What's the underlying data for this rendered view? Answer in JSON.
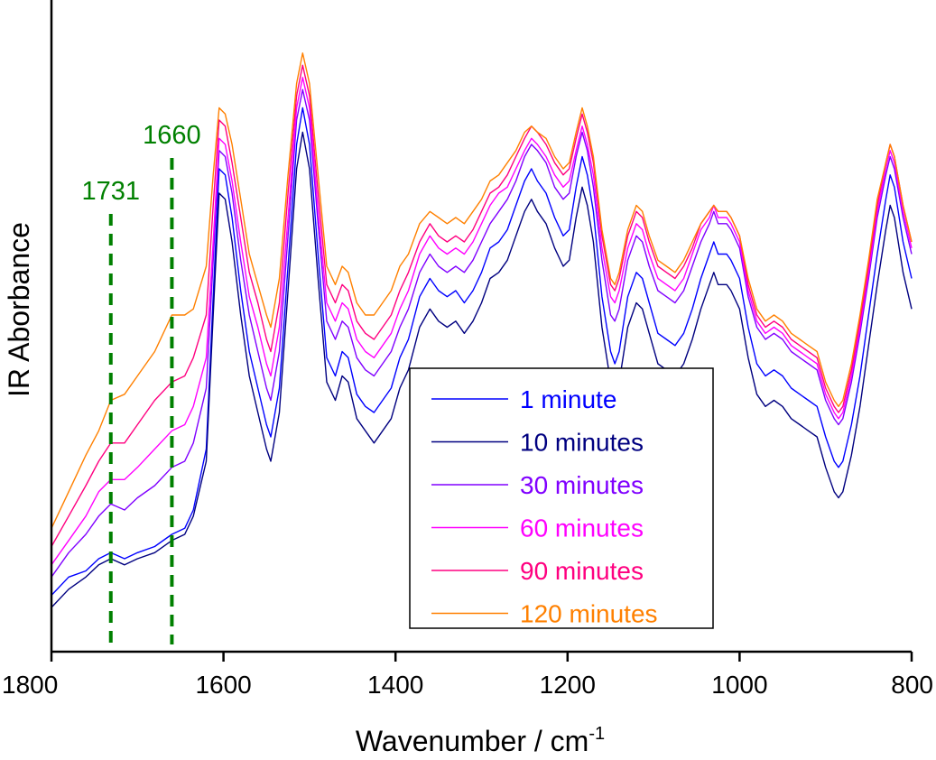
{
  "chart_data": {
    "type": "line",
    "title": "",
    "xlabel": "Wavenumber / cm",
    "xlabel_superscript": "-1",
    "ylabel": "IR Aborbance",
    "xlim": [
      1800,
      800
    ],
    "x_reversed": true,
    "ylim": [
      0,
      1
    ],
    "x_ticks": [
      1800,
      1600,
      1400,
      1200,
      1000,
      800
    ],
    "x_tick_labels": [
      "1800",
      "1600",
      "1400",
      "1200",
      "1000",
      "800"
    ],
    "y_tick_labels_shown": false,
    "grid": false,
    "legend_position": "bottom-center",
    "annotations": [
      {
        "label": "1731",
        "x": 1731,
        "color": "#008000",
        "style": "dashed"
      },
      {
        "label": "1660",
        "x": 1660,
        "color": "#008000",
        "style": "dashed"
      }
    ],
    "x": [
      1800,
      1780,
      1760,
      1745,
      1731,
      1715,
      1700,
      1680,
      1660,
      1645,
      1635,
      1620,
      1612,
      1605,
      1598,
      1590,
      1580,
      1570,
      1560,
      1550,
      1545,
      1535,
      1525,
      1515,
      1508,
      1500,
      1490,
      1480,
      1470,
      1462,
      1455,
      1445,
      1435,
      1425,
      1415,
      1405,
      1395,
      1385,
      1372,
      1360,
      1350,
      1340,
      1330,
      1320,
      1310,
      1300,
      1290,
      1280,
      1270,
      1260,
      1250,
      1242,
      1235,
      1225,
      1215,
      1205,
      1198,
      1190,
      1183,
      1177,
      1170,
      1160,
      1150,
      1145,
      1140,
      1130,
      1120,
      1113,
      1105,
      1095,
      1085,
      1075,
      1065,
      1055,
      1045,
      1035,
      1030,
      1025,
      1020,
      1015,
      1010,
      1000,
      990,
      980,
      970,
      960,
      950,
      940,
      930,
      920,
      910,
      900,
      890,
      885,
      880,
      870,
      860,
      850,
      840,
      830,
      825,
      820,
      810,
      800
    ],
    "series": [
      {
        "name": "1 minute",
        "color": "#0000ff",
        "values": [
          0.06,
          0.09,
          0.1,
          0.12,
          0.13,
          0.12,
          0.13,
          0.14,
          0.16,
          0.17,
          0.2,
          0.3,
          0.55,
          0.76,
          0.75,
          0.68,
          0.56,
          0.46,
          0.4,
          0.34,
          0.32,
          0.4,
          0.6,
          0.8,
          0.86,
          0.8,
          0.62,
          0.45,
          0.42,
          0.46,
          0.45,
          0.39,
          0.37,
          0.36,
          0.38,
          0.4,
          0.45,
          0.48,
          0.55,
          0.58,
          0.56,
          0.55,
          0.56,
          0.54,
          0.56,
          0.59,
          0.63,
          0.64,
          0.66,
          0.7,
          0.74,
          0.76,
          0.74,
          0.72,
          0.68,
          0.65,
          0.66,
          0.73,
          0.78,
          0.75,
          0.69,
          0.55,
          0.46,
          0.44,
          0.46,
          0.55,
          0.59,
          0.58,
          0.54,
          0.49,
          0.48,
          0.47,
          0.49,
          0.53,
          0.58,
          0.62,
          0.64,
          0.62,
          0.62,
          0.62,
          0.61,
          0.58,
          0.5,
          0.44,
          0.42,
          0.43,
          0.42,
          0.4,
          0.39,
          0.38,
          0.37,
          0.32,
          0.28,
          0.27,
          0.28,
          0.34,
          0.42,
          0.52,
          0.62,
          0.71,
          0.75,
          0.73,
          0.64,
          0.58
        ]
      },
      {
        "name": "10 minutes",
        "color": "#000080",
        "values": [
          0.04,
          0.07,
          0.09,
          0.11,
          0.12,
          0.11,
          0.12,
          0.13,
          0.15,
          0.16,
          0.19,
          0.28,
          0.52,
          0.72,
          0.71,
          0.64,
          0.52,
          0.42,
          0.36,
          0.3,
          0.28,
          0.36,
          0.56,
          0.76,
          0.82,
          0.76,
          0.58,
          0.41,
          0.38,
          0.42,
          0.41,
          0.35,
          0.33,
          0.31,
          0.33,
          0.35,
          0.4,
          0.43,
          0.5,
          0.53,
          0.51,
          0.5,
          0.51,
          0.49,
          0.51,
          0.54,
          0.58,
          0.59,
          0.61,
          0.65,
          0.69,
          0.71,
          0.69,
          0.67,
          0.63,
          0.6,
          0.61,
          0.68,
          0.73,
          0.7,
          0.64,
          0.5,
          0.41,
          0.39,
          0.41,
          0.5,
          0.54,
          0.53,
          0.49,
          0.44,
          0.43,
          0.42,
          0.44,
          0.48,
          0.53,
          0.57,
          0.59,
          0.57,
          0.57,
          0.57,
          0.56,
          0.53,
          0.45,
          0.39,
          0.37,
          0.38,
          0.37,
          0.35,
          0.34,
          0.33,
          0.32,
          0.27,
          0.23,
          0.22,
          0.23,
          0.29,
          0.37,
          0.47,
          0.57,
          0.66,
          0.7,
          0.68,
          0.59,
          0.53
        ]
      },
      {
        "name": "30 minutes",
        "color": "#8000ff",
        "values": [
          0.09,
          0.13,
          0.16,
          0.19,
          0.21,
          0.2,
          0.22,
          0.24,
          0.27,
          0.28,
          0.31,
          0.4,
          0.61,
          0.79,
          0.78,
          0.72,
          0.61,
          0.52,
          0.46,
          0.4,
          0.38,
          0.46,
          0.65,
          0.84,
          0.89,
          0.84,
          0.67,
          0.51,
          0.48,
          0.51,
          0.5,
          0.45,
          0.43,
          0.42,
          0.44,
          0.46,
          0.5,
          0.53,
          0.59,
          0.62,
          0.6,
          0.59,
          0.6,
          0.59,
          0.61,
          0.64,
          0.67,
          0.69,
          0.71,
          0.74,
          0.78,
          0.8,
          0.79,
          0.77,
          0.73,
          0.71,
          0.72,
          0.78,
          0.82,
          0.79,
          0.73,
          0.61,
          0.52,
          0.51,
          0.53,
          0.61,
          0.65,
          0.64,
          0.6,
          0.56,
          0.55,
          0.54,
          0.56,
          0.6,
          0.64,
          0.67,
          0.69,
          0.67,
          0.67,
          0.67,
          0.66,
          0.63,
          0.55,
          0.5,
          0.48,
          0.49,
          0.48,
          0.46,
          0.45,
          0.44,
          0.43,
          0.38,
          0.35,
          0.34,
          0.35,
          0.41,
          0.49,
          0.58,
          0.68,
          0.75,
          0.78,
          0.76,
          0.68,
          0.62
        ]
      },
      {
        "name": "60 minutes",
        "color": "#ff00ff",
        "values": [
          0.11,
          0.15,
          0.19,
          0.23,
          0.25,
          0.25,
          0.27,
          0.3,
          0.33,
          0.34,
          0.37,
          0.45,
          0.64,
          0.81,
          0.8,
          0.74,
          0.64,
          0.55,
          0.5,
          0.44,
          0.42,
          0.5,
          0.68,
          0.86,
          0.91,
          0.86,
          0.69,
          0.54,
          0.51,
          0.54,
          0.53,
          0.48,
          0.46,
          0.45,
          0.47,
          0.49,
          0.53,
          0.56,
          0.62,
          0.65,
          0.63,
          0.62,
          0.63,
          0.62,
          0.64,
          0.67,
          0.7,
          0.72,
          0.73,
          0.76,
          0.79,
          0.81,
          0.8,
          0.78,
          0.75,
          0.73,
          0.74,
          0.79,
          0.83,
          0.8,
          0.75,
          0.63,
          0.55,
          0.54,
          0.56,
          0.63,
          0.67,
          0.66,
          0.62,
          0.58,
          0.57,
          0.56,
          0.58,
          0.62,
          0.66,
          0.68,
          0.7,
          0.68,
          0.68,
          0.68,
          0.67,
          0.64,
          0.56,
          0.51,
          0.49,
          0.5,
          0.49,
          0.47,
          0.46,
          0.45,
          0.44,
          0.39,
          0.36,
          0.35,
          0.36,
          0.42,
          0.5,
          0.59,
          0.69,
          0.76,
          0.79,
          0.77,
          0.69,
          0.63
        ]
      },
      {
        "name": "90 minutes",
        "color": "#ff0080",
        "values": [
          0.14,
          0.19,
          0.24,
          0.28,
          0.31,
          0.31,
          0.34,
          0.38,
          0.41,
          0.42,
          0.45,
          0.52,
          0.7,
          0.84,
          0.83,
          0.77,
          0.68,
          0.59,
          0.54,
          0.48,
          0.46,
          0.54,
          0.72,
          0.88,
          0.93,
          0.88,
          0.72,
          0.57,
          0.54,
          0.57,
          0.56,
          0.51,
          0.49,
          0.48,
          0.5,
          0.52,
          0.56,
          0.59,
          0.64,
          0.67,
          0.65,
          0.64,
          0.65,
          0.64,
          0.66,
          0.69,
          0.72,
          0.73,
          0.75,
          0.78,
          0.81,
          0.83,
          0.82,
          0.8,
          0.77,
          0.75,
          0.76,
          0.81,
          0.85,
          0.82,
          0.77,
          0.65,
          0.57,
          0.56,
          0.58,
          0.65,
          0.69,
          0.68,
          0.64,
          0.6,
          0.59,
          0.58,
          0.6,
          0.63,
          0.67,
          0.69,
          0.7,
          0.69,
          0.69,
          0.69,
          0.68,
          0.65,
          0.57,
          0.52,
          0.5,
          0.51,
          0.5,
          0.48,
          0.47,
          0.46,
          0.45,
          0.4,
          0.37,
          0.36,
          0.37,
          0.43,
          0.51,
          0.6,
          0.7,
          0.77,
          0.8,
          0.78,
          0.7,
          0.64
        ]
      },
      {
        "name": "120 minutes",
        "color": "#ff8000",
        "values": [
          0.17,
          0.23,
          0.29,
          0.33,
          0.38,
          0.39,
          0.42,
          0.46,
          0.52,
          0.52,
          0.53,
          0.6,
          0.75,
          0.86,
          0.85,
          0.8,
          0.71,
          0.62,
          0.57,
          0.52,
          0.5,
          0.58,
          0.75,
          0.9,
          0.95,
          0.9,
          0.75,
          0.6,
          0.57,
          0.6,
          0.59,
          0.54,
          0.52,
          0.52,
          0.54,
          0.56,
          0.6,
          0.62,
          0.67,
          0.69,
          0.68,
          0.67,
          0.68,
          0.67,
          0.69,
          0.71,
          0.74,
          0.75,
          0.77,
          0.79,
          0.82,
          0.83,
          0.82,
          0.81,
          0.78,
          0.76,
          0.77,
          0.82,
          0.86,
          0.83,
          0.78,
          0.66,
          0.58,
          0.57,
          0.59,
          0.66,
          0.7,
          0.69,
          0.65,
          0.61,
          0.6,
          0.59,
          0.61,
          0.64,
          0.67,
          0.69,
          0.7,
          0.69,
          0.69,
          0.69,
          0.68,
          0.65,
          0.58,
          0.53,
          0.51,
          0.52,
          0.51,
          0.49,
          0.48,
          0.47,
          0.46,
          0.41,
          0.38,
          0.37,
          0.38,
          0.44,
          0.52,
          0.61,
          0.71,
          0.77,
          0.8,
          0.78,
          0.7,
          0.64
        ]
      }
    ]
  }
}
